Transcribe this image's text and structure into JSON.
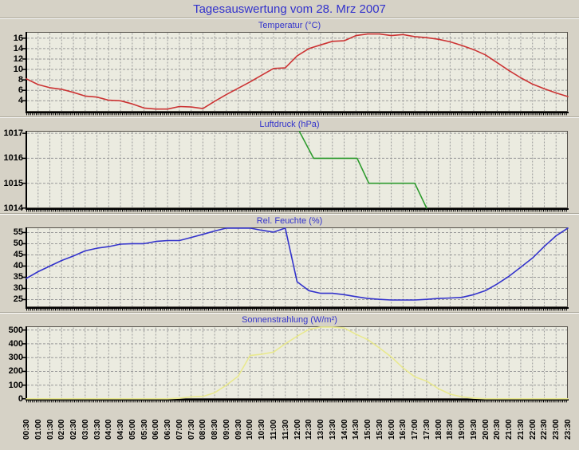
{
  "page": {
    "title": "Tagesauswertung vom 28. Mrz 2007",
    "background_color": "#D6D2C6",
    "plot_background_color": "#EBEBE0",
    "title_color": "#3333CC",
    "grid_color": "#999999",
    "axis_color": "#000000",
    "tick_label_color": "#000000"
  },
  "x_labels": [
    "00:30",
    "01:00",
    "01:30",
    "02:00",
    "02:30",
    "03:00",
    "03:30",
    "04:00",
    "04:30",
    "05:00",
    "05:30",
    "06:00",
    "06:30",
    "07:00",
    "07:30",
    "08:00",
    "08:30",
    "09:00",
    "09:30",
    "10:00",
    "10:30",
    "11:00",
    "11:30",
    "12:00",
    "12:30",
    "13:00",
    "13:30",
    "14:00",
    "14:30",
    "15:00",
    "15:30",
    "16:00",
    "16:30",
    "17:00",
    "17:30",
    "18:00",
    "18:30",
    "19:00",
    "19:30",
    "20:00",
    "20:30",
    "21:00",
    "21:30",
    "22:00",
    "22:30",
    "23:00",
    "23:30"
  ],
  "chart_data": [
    {
      "id": "temperatur",
      "type": "line",
      "title": "Temperatur (°C)",
      "color": "#CC3333",
      "y_ticks": [
        4,
        6,
        8,
        10,
        12,
        14,
        16
      ],
      "ylim": [
        1.9,
        17.2
      ],
      "x_categories_ref": "x_labels",
      "values": [
        8.2,
        7.1,
        6.5,
        6.2,
        5.6,
        4.9,
        4.7,
        4.1,
        4.0,
        3.4,
        2.6,
        2.4,
        2.4,
        2.9,
        2.8,
        2.5,
        3.9,
        5.2,
        6.4,
        7.6,
        8.9,
        10.2,
        10.3,
        12.6,
        14.0,
        14.7,
        15.4,
        15.5,
        16.5,
        16.8,
        16.8,
        16.5,
        16.7,
        16.3,
        16.1,
        15.8,
        15.3,
        14.6,
        13.8,
        12.8,
        11.3,
        9.8,
        8.4,
        7.2,
        6.3,
        5.5,
        4.8
      ]
    },
    {
      "id": "luftdruck",
      "type": "line",
      "title": "Luftdruck (hPa)",
      "color": "#2E9B2E",
      "y_ticks": [
        1014,
        1015,
        1016,
        1017
      ],
      "ylim": [
        1014,
        1017.1
      ],
      "x_categories_ref": "x_labels",
      "points": [
        [
          23.2,
          1017.1
        ],
        [
          24.4,
          1016
        ],
        [
          28.1,
          1016
        ],
        [
          29.1,
          1015
        ],
        [
          33.0,
          1015
        ],
        [
          34.0,
          1014
        ]
      ],
      "note_no_data_before": "12:00"
    },
    {
      "id": "feuchte",
      "type": "line",
      "title": "Rel. Feuchte (%)",
      "color": "#3333CC",
      "y_ticks": [
        25,
        30,
        35,
        40,
        45,
        50,
        55
      ],
      "ylim": [
        21.6,
        57.3
      ],
      "x_categories_ref": "x_labels",
      "values": [
        34.5,
        37.5,
        40.0,
        42.5,
        44.5,
        46.8,
        48.0,
        48.7,
        49.8,
        50.0,
        50.0,
        51.0,
        51.4,
        51.4,
        52.8,
        54.2,
        55.7,
        57.0,
        57.4,
        57.2,
        56.0,
        55.2,
        57.3,
        33.0,
        29.0,
        27.8,
        27.8,
        27.2,
        26.3,
        25.5,
        25.1,
        24.8,
        24.8,
        24.8,
        25.1,
        25.5,
        25.7,
        26.0,
        27.2,
        29.0,
        32.0,
        35.4,
        39.5,
        43.6,
        48.8,
        53.5,
        57.5
      ]
    },
    {
      "id": "sonnenstrahlung",
      "type": "line",
      "title": "Sonnenstrahlung (W/m²)",
      "color": "#E9E98E",
      "y_ticks": [
        0,
        100,
        200,
        300,
        400,
        500
      ],
      "ylim": [
        0,
        527
      ],
      "x_categories_ref": "x_labels",
      "values": [
        0,
        0,
        0,
        0,
        0,
        0,
        0,
        0,
        0,
        0,
        0,
        0,
        0,
        5,
        15,
        18,
        45,
        100,
        165,
        315,
        325,
        340,
        400,
        455,
        505,
        522,
        528,
        515,
        470,
        430,
        370,
        305,
        225,
        160,
        130,
        75,
        35,
        15,
        5,
        0,
        0,
        0,
        0,
        0,
        0,
        0,
        0
      ]
    }
  ],
  "layout_hints": {
    "grid": true,
    "legend": false,
    "x_tick_rotation_deg": 90,
    "x_labels_only_on_last_chart": true
  }
}
